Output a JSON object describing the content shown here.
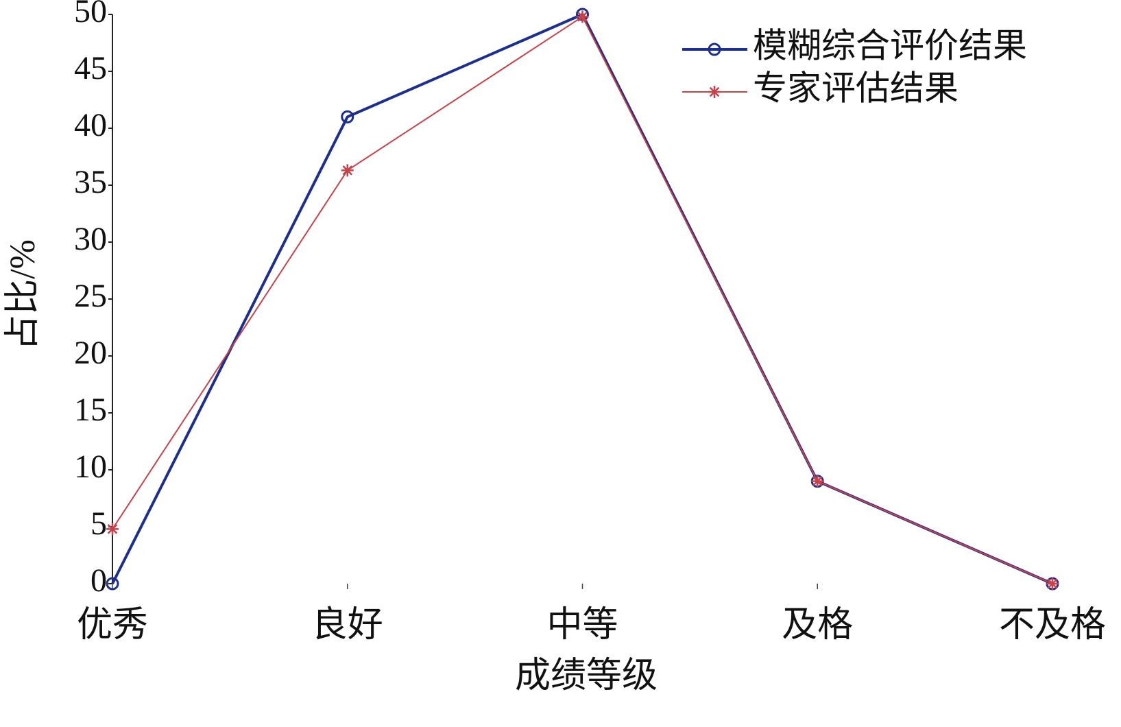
{
  "chart_data": {
    "type": "line",
    "categories": [
      "优秀",
      "良好",
      "中等",
      "及格",
      "不及格"
    ],
    "series": [
      {
        "name": "模糊综合评价结果",
        "color": "#1c2f8f",
        "marker": "circle",
        "line_width": 4,
        "values": [
          0,
          41,
          50,
          9,
          0
        ]
      },
      {
        "name": "专家评估结果",
        "color": "#c8424a",
        "marker": "star",
        "line_width": 2,
        "values": [
          4.8,
          36.3,
          49.8,
          9,
          0
        ]
      }
    ],
    "x_label": "成绩等级",
    "y_label": "占比/%",
    "ylim": [
      0,
      50
    ],
    "yticks": [
      0,
      5,
      10,
      15,
      20,
      25,
      30,
      35,
      40,
      45,
      50
    ],
    "grid": false,
    "legend": "upper right"
  }
}
